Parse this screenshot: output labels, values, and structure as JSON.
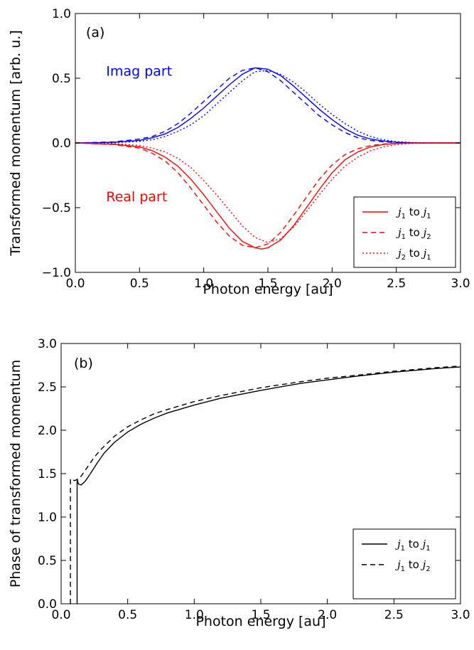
{
  "chart_data": [
    {
      "id": "a",
      "type": "line",
      "panel_label": "(a)",
      "xlabel": "Photon energy [au]",
      "ylabel": "Transformed momentum [arb. u.]",
      "xlim": [
        0,
        3
      ],
      "ylim": [
        -1,
        1
      ],
      "xticks": [
        0,
        0.5,
        1,
        1.5,
        2,
        2.5,
        3
      ],
      "xtick_labels": [
        "0.0",
        "0.5",
        "1.0",
        "1.5",
        "2.0",
        "2.5",
        "3.0"
      ],
      "yticks": [
        -1,
        -0.5,
        0,
        0.5,
        1
      ],
      "ytick_labels": [
        "−1.0",
        "−0.5",
        "0.0",
        "0.5",
        "1.0"
      ],
      "grid": false,
      "legend_position": "lower-right",
      "annotations": [
        {
          "text": "Imag part",
          "x": 0.24,
          "y": 0.52,
          "color": "#0000ff"
        },
        {
          "text": "Real part",
          "x": 0.24,
          "y": -0.45,
          "color": "#ff0000"
        }
      ],
      "legend": [
        {
          "a": "j",
          "as": "1",
          "word": "to",
          "b": "j",
          "bs": "1",
          "style": "solid",
          "color": "#ff0000"
        },
        {
          "a": "j",
          "as": "1",
          "word": "to",
          "b": "j",
          "bs": "2",
          "style": "dashed",
          "color": "#ff0000"
        },
        {
          "a": "j",
          "as": "2",
          "word": "to",
          "b": "j",
          "bs": "1",
          "style": "dotted",
          "color": "#ff0000"
        }
      ],
      "series": [
        {
          "part": "imag",
          "transition": "j1 to j1",
          "style": "solid",
          "color": "#0000ff",
          "x": [
            0,
            0.3,
            0.5,
            0.6,
            0.7,
            0.8,
            0.9,
            1.0,
            1.1,
            1.2,
            1.3,
            1.4,
            1.5,
            1.6,
            1.7,
            1.8,
            1.9,
            2.0,
            2.1,
            2.2,
            2.3,
            2.4,
            2.5,
            2.6,
            2.7,
            3.0
          ],
          "y": [
            0,
            0.005,
            0.02,
            0.04,
            0.07,
            0.12,
            0.19,
            0.27,
            0.36,
            0.45,
            0.53,
            0.58,
            0.57,
            0.52,
            0.44,
            0.35,
            0.26,
            0.18,
            0.11,
            0.06,
            0.03,
            0.015,
            0.006,
            0.002,
            0,
            0
          ]
        },
        {
          "part": "imag",
          "transition": "j1 to j2",
          "style": "dashed",
          "color": "#0000ff",
          "x": [
            0,
            0.3,
            0.5,
            0.6,
            0.7,
            0.8,
            0.9,
            1.0,
            1.1,
            1.2,
            1.3,
            1.4,
            1.5,
            1.6,
            1.7,
            1.8,
            1.9,
            2.0,
            2.1,
            2.2,
            2.3,
            2.4,
            2.5,
            2.6,
            2.7,
            3.0
          ],
          "y": [
            0,
            0.008,
            0.03,
            0.05,
            0.09,
            0.15,
            0.23,
            0.32,
            0.41,
            0.5,
            0.56,
            0.58,
            0.55,
            0.48,
            0.39,
            0.3,
            0.21,
            0.14,
            0.08,
            0.04,
            0.02,
            0.008,
            0.003,
            0.001,
            0,
            0
          ]
        },
        {
          "part": "imag",
          "transition": "j2 to j1",
          "style": "dotted",
          "color": "#0000ff",
          "x": [
            0,
            0.3,
            0.5,
            0.6,
            0.7,
            0.8,
            0.9,
            1.0,
            1.1,
            1.2,
            1.3,
            1.4,
            1.5,
            1.6,
            1.7,
            1.8,
            1.9,
            2.0,
            2.1,
            2.2,
            2.3,
            2.4,
            2.5,
            2.6,
            2.7,
            3.0
          ],
          "y": [
            0,
            0.003,
            0.012,
            0.025,
            0.05,
            0.09,
            0.14,
            0.21,
            0.3,
            0.39,
            0.48,
            0.55,
            0.56,
            0.53,
            0.47,
            0.39,
            0.3,
            0.22,
            0.15,
            0.09,
            0.05,
            0.025,
            0.01,
            0.004,
            0.001,
            0
          ]
        },
        {
          "part": "real",
          "transition": "j1 to j1",
          "style": "solid",
          "color": "#ff0000",
          "x": [
            0,
            0.3,
            0.5,
            0.6,
            0.7,
            0.8,
            0.9,
            1.0,
            1.1,
            1.2,
            1.3,
            1.4,
            1.45,
            1.5,
            1.6,
            1.7,
            1.8,
            1.9,
            2.0,
            2.1,
            2.2,
            2.3,
            2.4,
            2.5,
            2.6,
            2.7,
            3.0
          ],
          "y": [
            0,
            -0.01,
            -0.03,
            -0.06,
            -0.11,
            -0.18,
            -0.28,
            -0.4,
            -0.53,
            -0.66,
            -0.76,
            -0.81,
            -0.82,
            -0.81,
            -0.75,
            -0.64,
            -0.5,
            -0.36,
            -0.23,
            -0.13,
            -0.07,
            -0.03,
            -0.012,
            -0.004,
            -0.001,
            0,
            0
          ]
        },
        {
          "part": "real",
          "transition": "j1 to j2",
          "style": "dashed",
          "color": "#ff0000",
          "x": [
            0,
            0.3,
            0.5,
            0.6,
            0.7,
            0.8,
            0.9,
            1.0,
            1.1,
            1.2,
            1.3,
            1.4,
            1.5,
            1.6,
            1.7,
            1.8,
            1.9,
            2.0,
            2.1,
            2.2,
            2.3,
            2.4,
            2.5,
            2.6,
            2.7,
            3.0
          ],
          "y": [
            0,
            -0.012,
            -0.04,
            -0.08,
            -0.14,
            -0.23,
            -0.35,
            -0.48,
            -0.61,
            -0.72,
            -0.79,
            -0.81,
            -0.78,
            -0.69,
            -0.56,
            -0.42,
            -0.28,
            -0.17,
            -0.09,
            -0.045,
            -0.02,
            -0.008,
            -0.003,
            -0.001,
            0,
            0
          ]
        },
        {
          "part": "real",
          "transition": "j2 to j1",
          "style": "dotted",
          "color": "#ff0000",
          "x": [
            0,
            0.3,
            0.5,
            0.6,
            0.7,
            0.8,
            0.9,
            1.0,
            1.1,
            1.2,
            1.3,
            1.4,
            1.5,
            1.6,
            1.7,
            1.8,
            1.9,
            2.0,
            2.1,
            2.2,
            2.3,
            2.4,
            2.5,
            2.6,
            2.7,
            3.0
          ],
          "y": [
            0,
            -0.005,
            -0.02,
            -0.04,
            -0.07,
            -0.12,
            -0.19,
            -0.29,
            -0.4,
            -0.52,
            -0.64,
            -0.73,
            -0.77,
            -0.74,
            -0.65,
            -0.53,
            -0.4,
            -0.28,
            -0.18,
            -0.11,
            -0.06,
            -0.03,
            -0.013,
            -0.005,
            -0.002,
            0
          ]
        }
      ]
    },
    {
      "id": "b",
      "type": "line",
      "panel_label": "(b)",
      "xlabel": "Photon energy [au]",
      "ylabel": "Phase of transformed momentum",
      "xlim": [
        0,
        3
      ],
      "ylim": [
        0,
        3
      ],
      "xticks": [
        0,
        0.5,
        1,
        1.5,
        2,
        2.5,
        3
      ],
      "xtick_labels": [
        "0.0",
        "0.5",
        "1.0",
        "1.5",
        "2.0",
        "2.5",
        "3.0"
      ],
      "yticks": [
        0,
        0.5,
        1,
        1.5,
        2,
        2.5,
        3
      ],
      "ytick_labels": [
        "0.0",
        "0.5",
        "1.0",
        "1.5",
        "2.0",
        "2.5",
        "3.0"
      ],
      "grid": false,
      "legend_position": "lower-right",
      "legend": [
        {
          "a": "j",
          "as": "1",
          "word": "to",
          "b": "j",
          "bs": "1",
          "style": "solid",
          "color": "#000000"
        },
        {
          "a": "j",
          "as": "1",
          "word": "to",
          "b": "j",
          "bs": "2",
          "style": "dashed",
          "color": "#000000"
        }
      ],
      "series": [
        {
          "transition": "j1 to j1",
          "style": "solid",
          "color": "#000000",
          "x": [
            0.12,
            0.12,
            0.13,
            0.15,
            0.18,
            0.22,
            0.27,
            0.32,
            0.4,
            0.5,
            0.6,
            0.7,
            0.8,
            1.0,
            1.2,
            1.5,
            1.8,
            2.0,
            2.2,
            2.5,
            2.8,
            3.0
          ],
          "y": [
            0,
            1.44,
            1.38,
            1.37,
            1.41,
            1.5,
            1.62,
            1.73,
            1.86,
            1.98,
            2.07,
            2.14,
            2.2,
            2.29,
            2.37,
            2.46,
            2.54,
            2.58,
            2.62,
            2.67,
            2.71,
            2.73
          ]
        },
        {
          "transition": "j1 to j2",
          "style": "dashed",
          "color": "#000000",
          "x": [
            0.07,
            0.07,
            0.1,
            0.12,
            0.15,
            0.2,
            0.25,
            0.3,
            0.4,
            0.5,
            0.6,
            0.7,
            0.8,
            1.0,
            1.2,
            1.5,
            1.8,
            2.0,
            2.2,
            2.5,
            2.8,
            3.0
          ],
          "y": [
            0,
            1.44,
            1.42,
            1.43,
            1.47,
            1.58,
            1.69,
            1.78,
            1.93,
            2.04,
            2.12,
            2.19,
            2.24,
            2.33,
            2.4,
            2.49,
            2.56,
            2.6,
            2.63,
            2.68,
            2.72,
            2.74
          ]
        }
      ]
    }
  ]
}
